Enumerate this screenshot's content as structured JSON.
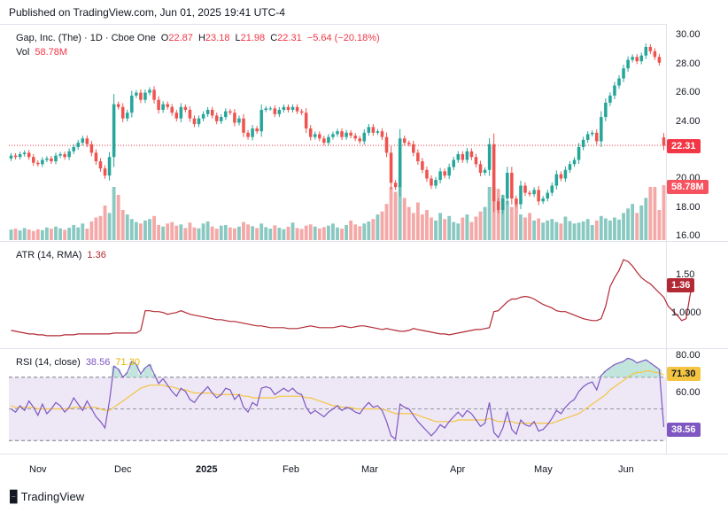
{
  "header": {
    "published": "Published on TradingView.com, Jun 01, 2025 19:41 UTC-4"
  },
  "legend": {
    "symbol": "Gap, Inc. (The) · 1D · Cboe One",
    "o_label": "O",
    "o": "22.87",
    "h_label": "H",
    "h": "23.18",
    "l_label": "L",
    "l": "21.98",
    "c_label": "C",
    "c": "22.31",
    "change": "−5.64 (−20.18%)",
    "vol_label": "Vol",
    "vol": "58.78M"
  },
  "atr": {
    "label": "ATR (14, RMA)",
    "value": "1.36"
  },
  "rsi": {
    "label": "RSI (14, close)",
    "value": "38.56",
    "ma_value": "71.30"
  },
  "price_axis_labels": [
    "30.00",
    "28.00",
    "26.00",
    "24.00",
    "20.00",
    "18.00",
    "16.00"
  ],
  "atr_axis_labels": [
    "1.50",
    "1.0000"
  ],
  "rsi_axis_labels": [
    "80.00",
    "60.00"
  ],
  "time_labels": [
    "Nov",
    "Dec",
    "2025",
    "Feb",
    "Mar",
    "Apr",
    "May",
    "Jun"
  ],
  "markers": {
    "price": "22.31",
    "volume": "58.78M",
    "atr": "1.36",
    "rsi_ma": "71.30",
    "rsi": "38.56"
  },
  "brand": "TradingView",
  "colors": {
    "up": "#26a69a",
    "down": "#ef5350",
    "atr_line": "#b22833",
    "rsi_line": "#7e57c2",
    "rsi_ma": "#f5c542",
    "rsi_band": "#ede7f6"
  },
  "chart_data": [
    {
      "type": "candlestick",
      "title": "Gap, Inc. (The) · 1D · Cboe One",
      "x_labels": [
        "Nov",
        "Dec",
        "2025",
        "Feb",
        "Mar",
        "Apr",
        "May",
        "Jun"
      ],
      "ylim": [
        16,
        30.5
      ],
      "last": {
        "open": 22.87,
        "high": 23.18,
        "low": 21.98,
        "close": 22.31
      },
      "close": [
        21.6,
        21.5,
        21.7,
        21.8,
        21.5,
        21.1,
        21.0,
        21.3,
        21.4,
        21.2,
        21.6,
        21.7,
        21.5,
        21.9,
        22.2,
        22.5,
        22.8,
        22.4,
        21.8,
        21.2,
        20.7,
        20.2,
        21.5,
        25.2,
        25.0,
        24.2,
        24.6,
        25.8,
        26.0,
        25.5,
        26.0,
        26.2,
        25.5,
        24.8,
        25.2,
        25.0,
        24.6,
        24.2,
        25.0,
        24.8,
        24.2,
        23.8,
        24.2,
        24.5,
        24.8,
        24.4,
        24.0,
        24.3,
        24.7,
        24.6,
        23.9,
        24.2,
        23.2,
        22.9,
        23.5,
        23.3,
        24.8,
        24.9,
        24.9,
        24.5,
        24.8,
        25.0,
        24.8,
        25.0,
        24.7,
        24.6,
        23.5,
        22.9,
        23.1,
        22.8,
        22.5,
        22.9,
        23.1,
        23.3,
        22.9,
        23.2,
        23.0,
        22.8,
        22.6,
        23.2,
        23.6,
        23.2,
        23.3,
        22.9,
        21.8,
        19.7,
        19.4,
        22.8,
        22.5,
        22.4,
        21.8,
        21.2,
        20.6,
        20.0,
        19.5,
        19.9,
        20.5,
        20.2,
        20.8,
        21.3,
        21.7,
        21.3,
        21.9,
        21.5,
        21.0,
        20.4,
        20.6,
        22.4,
        18.4,
        17.8,
        18.6,
        20.4,
        18.6,
        18.2,
        19.5,
        19.0,
        18.9,
        19.2,
        18.4,
        18.6,
        19.0,
        19.5,
        20.3,
        20.0,
        20.6,
        21.0,
        21.3,
        22.2,
        22.7,
        23.1,
        23.2,
        22.6,
        24.3,
        25.3,
        25.8,
        26.5,
        27.0,
        27.7,
        28.3,
        28.5,
        28.2,
        28.6,
        29.2,
        28.9,
        28.5,
        28.1,
        22.31
      ],
      "volume_m": [
        3.5,
        3.8,
        3.2,
        4.0,
        3.5,
        3.0,
        3.6,
        3.3,
        4.2,
        3.8,
        4.5,
        3.9,
        3.4,
        4.1,
        5.0,
        4.2,
        5.5,
        3.8,
        6.2,
        7.5,
        8.0,
        11.5,
        9.0,
        32.0,
        15.0,
        10.0,
        8.5,
        7.0,
        6.0,
        5.5,
        6.5,
        7.0,
        8.0,
        5.0,
        4.5,
        5.5,
        6.0,
        4.8,
        5.2,
        4.0,
        5.8,
        4.2,
        3.9,
        5.5,
        6.2,
        4.5,
        3.8,
        4.8,
        5.0,
        4.2,
        3.9,
        4.5,
        6.0,
        5.2,
        4.6,
        4.0,
        5.5,
        4.3,
        3.8,
        4.9,
        4.1,
        3.6,
        4.4,
        5.8,
        4.0,
        3.7,
        4.8,
        5.2,
        4.5,
        3.9,
        4.3,
        4.8,
        5.5,
        4.2,
        3.8,
        5.0,
        6.5,
        5.2,
        4.6,
        5.5,
        6.2,
        7.0,
        8.5,
        9.5,
        12.0,
        18.5,
        16.0,
        22.0,
        14.0,
        11.0,
        9.0,
        12.5,
        8.5,
        10.0,
        7.5,
        6.5,
        9.0,
        7.0,
        8.0,
        6.0,
        5.5,
        7.5,
        8.5,
        6.0,
        7.8,
        9.5,
        11.0,
        25.0,
        18.0,
        17.0,
        15.0,
        13.0,
        11.0,
        12.0,
        8.5,
        7.5,
        9.0,
        6.5,
        7.2,
        5.8,
        6.5,
        7.0,
        6.0,
        5.5,
        7.8,
        6.3,
        5.5,
        5.8,
        6.2,
        7.0,
        5.0,
        6.5,
        8.0,
        7.2,
        6.5,
        7.5,
        6.8,
        9.0,
        10.5,
        12.0,
        9.0,
        11.5,
        14.0,
        18.0,
        24.0,
        10.0,
        58.78
      ]
    },
    {
      "type": "line",
      "title": "ATR (14, RMA)",
      "ylim": [
        0.79,
        1.83
      ],
      "last": 1.36,
      "series": [
        {
          "name": "ATR (14, RMA)",
          "values": [
            0.93,
            0.92,
            0.91,
            0.9,
            0.89,
            0.89,
            0.88,
            0.88,
            0.87,
            0.87,
            0.87,
            0.87,
            0.88,
            0.88,
            0.88,
            0.89,
            0.89,
            0.89,
            0.89,
            0.89,
            0.89,
            0.89,
            0.89,
            0.9,
            0.9,
            0.9,
            0.9,
            0.9,
            0.9,
            0.93,
            1.15,
            1.15,
            1.14,
            1.14,
            1.13,
            1.11,
            1.12,
            1.13,
            1.15,
            1.13,
            1.11,
            1.1,
            1.09,
            1.08,
            1.07,
            1.06,
            1.05,
            1.05,
            1.04,
            1.03,
            1.03,
            1.02,
            1.01,
            1.0,
            0.99,
            0.98,
            0.98,
            0.97,
            0.96,
            0.96,
            0.96,
            0.96,
            0.95,
            0.95,
            0.95,
            0.96,
            0.97,
            0.98,
            0.97,
            0.96,
            0.96,
            0.96,
            0.96,
            0.97,
            0.98,
            0.97,
            0.96,
            0.97,
            0.98,
            0.98,
            0.97,
            0.96,
            0.95,
            0.94,
            0.95,
            0.94,
            0.93,
            0.92,
            0.92,
            0.93,
            0.95,
            0.94,
            0.93,
            0.92,
            0.91,
            0.9,
            0.89,
            0.89,
            0.88,
            0.89,
            0.9,
            0.91,
            0.92,
            0.93,
            0.94,
            0.94,
            0.95,
            0.96,
            1.14,
            1.15,
            1.2,
            1.25,
            1.28,
            1.28,
            1.3,
            1.31,
            1.3,
            1.28,
            1.25,
            1.22,
            1.2,
            1.18,
            1.15,
            1.14,
            1.14,
            1.12,
            1.1,
            1.08,
            1.06,
            1.05,
            1.04,
            1.04,
            1.06,
            1.2,
            1.42,
            1.52,
            1.6,
            1.72,
            1.7,
            1.65,
            1.58,
            1.52,
            1.48,
            1.45,
            1.4,
            1.35,
            1.3,
            1.2,
            1.15,
            1.1,
            1.04,
            1.06,
            1.36
          ]
        }
      ]
    },
    {
      "type": "line",
      "title": "RSI (14, close)",
      "ylim": [
        24,
        85.5
      ],
      "reference_lines": [
        70,
        50,
        30
      ],
      "last": {
        "rsi": 38.56,
        "ma": 71.3
      },
      "series": [
        {
          "name": "RSI (14, close)",
          "values": [
            50,
            48,
            52,
            49,
            55,
            51,
            46,
            53,
            47,
            50,
            54,
            52,
            48,
            51,
            57,
            53,
            49,
            55,
            50,
            45,
            42,
            38,
            55,
            77,
            75,
            70,
            73,
            80,
            78,
            72,
            76,
            78,
            72,
            66,
            69,
            65,
            61,
            58,
            63,
            61,
            56,
            54,
            58,
            61,
            64,
            60,
            57,
            59,
            63,
            62,
            56,
            59,
            51,
            48,
            54,
            52,
            63,
            64,
            63,
            59,
            61,
            63,
            61,
            63,
            60,
            59,
            51,
            47,
            49,
            47,
            45,
            48,
            50,
            52,
            49,
            51,
            50,
            48,
            47,
            51,
            54,
            51,
            52,
            49,
            42,
            33,
            31,
            53,
            51,
            50,
            46,
            42,
            39,
            36,
            33,
            36,
            40,
            38,
            42,
            45,
            48,
            45,
            49,
            47,
            43,
            39,
            41,
            54,
            35,
            32,
            38,
            48,
            37,
            34,
            43,
            40,
            39,
            42,
            36,
            37,
            40,
            44,
            49,
            47,
            51,
            54,
            56,
            61,
            64,
            66,
            67,
            62,
            71,
            74,
            76,
            78,
            79,
            80,
            82,
            81,
            79,
            80,
            81,
            79,
            77,
            75,
            38.56
          ]
        },
        {
          "name": "RSI-based MA",
          "values": [
            52,
            51,
            51,
            51,
            51,
            51,
            50,
            50,
            50,
            50,
            50,
            50,
            50,
            50,
            51,
            51,
            51,
            51,
            51,
            51,
            50,
            49,
            49,
            51,
            53,
            55,
            57,
            59,
            61,
            63,
            64,
            65,
            65,
            65,
            65,
            64,
            64,
            63,
            62,
            62,
            61,
            60,
            60,
            60,
            60,
            60,
            59,
            59,
            59,
            59,
            59,
            59,
            58,
            58,
            57,
            57,
            57,
            57,
            57,
            57,
            58,
            58,
            58,
            58,
            58,
            58,
            57,
            57,
            56,
            55,
            54,
            53,
            52,
            52,
            51,
            51,
            51,
            50,
            50,
            50,
            50,
            50,
            50,
            50,
            49,
            48,
            47,
            47,
            47,
            47,
            47,
            46,
            45,
            44,
            43,
            42,
            42,
            42,
            42,
            42,
            43,
            43,
            43,
            43,
            43,
            43,
            43,
            44,
            43,
            42,
            42,
            42,
            42,
            41,
            41,
            41,
            41,
            41,
            41,
            41,
            41,
            41,
            42,
            43,
            44,
            45,
            46,
            47,
            49,
            51,
            53,
            55,
            57,
            59,
            62,
            64,
            66,
            68,
            70,
            72,
            73,
            73,
            74,
            74,
            73,
            73,
            71.3
          ]
        }
      ]
    }
  ]
}
